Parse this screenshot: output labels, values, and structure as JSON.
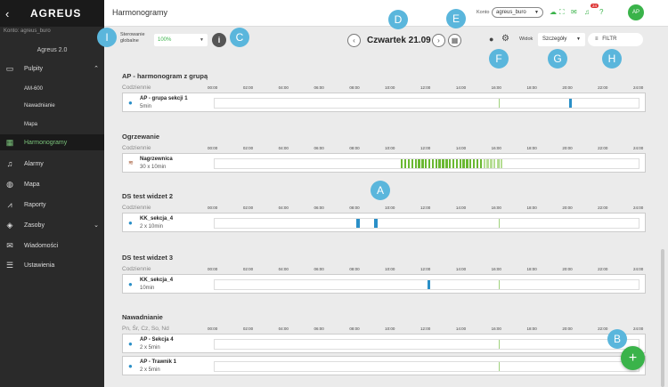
{
  "sidebar": {
    "logo": "AGREUS",
    "account": "Konto: agreus_buro",
    "version": "Agreus 2.0",
    "items": [
      {
        "label": "Pulpity",
        "icon": "monitor-icon"
      },
      {
        "label": "AM-600",
        "icon": ""
      },
      {
        "label": "Nawadnianie",
        "icon": ""
      },
      {
        "label": "Mapa",
        "icon": ""
      },
      {
        "label": "Harmonogramy",
        "icon": "calendar-icon"
      },
      {
        "label": "Alarmy",
        "icon": "bell-icon"
      },
      {
        "label": "Mapa",
        "icon": "globe-icon"
      },
      {
        "label": "Raporty",
        "icon": "chart-icon"
      },
      {
        "label": "Zasoby",
        "icon": "layers-icon"
      },
      {
        "label": "Wiadomości",
        "icon": "mail-icon"
      },
      {
        "label": "Ustawienia",
        "icon": "sliders-icon"
      }
    ]
  },
  "topbar": {
    "title": "Harmonogramy",
    "account_label": "Konto",
    "account_value": "agreus_buro",
    "notif_count": "24",
    "avatar": "AP"
  },
  "controls": {
    "steering_label_1": "Sterowanie",
    "steering_label_2": "globalne",
    "steering_value": "100%",
    "date": "Czwartek 21.09",
    "view_label": "Widok",
    "view_value": "Szczegóły",
    "filter_label": "FILTR"
  },
  "ticks": [
    "00:00",
    "02:00",
    "04:00",
    "06:00",
    "08:00",
    "10:00",
    "12:00",
    "14:00",
    "16:00",
    "18:00",
    "20:00",
    "22:00",
    "24:00"
  ],
  "now_fraction": 0.6667,
  "groups": [
    {
      "title": "AP - harmonogram z grupą",
      "sub": "Codziennie",
      "rows": [
        {
          "name": "AP - grupa sekcji 1",
          "dur": "5min",
          "icon": "water",
          "bars": [
            {
              "start_h": 20.0,
              "dur_h": 0.1,
              "color": "#2a8fc7"
            }
          ]
        }
      ]
    },
    {
      "title": "Ogrzewanie",
      "sub": "Codziennie",
      "rows": [
        {
          "name": "Nagrzewnica",
          "dur": "30 x 10min",
          "icon": "heat",
          "bars": []
        }
      ]
    },
    {
      "title": "DS test widzet 2",
      "sub": "Codziennie",
      "rows": [
        {
          "name": "KK_sekcja_4",
          "dur": "2 x 10min",
          "icon": "water",
          "bars": [
            {
              "start_h": 8.0,
              "dur_h": 0.17,
              "color": "#2a8fc7"
            },
            {
              "start_h": 9.0,
              "dur_h": 0.17,
              "color": "#2a8fc7"
            }
          ]
        }
      ]
    },
    {
      "title": "DS test widzet 3",
      "sub": "Codziennie",
      "rows": [
        {
          "name": "KK_sekcja_4",
          "dur": "10min",
          "icon": "water",
          "bars": [
            {
              "start_h": 12.0,
              "dur_h": 0.17,
              "color": "#2a8fc7"
            }
          ]
        }
      ]
    },
    {
      "title": "Nawadnianie",
      "sub": "Pn, Śr, Cz, So, Nd",
      "rows": [
        {
          "name": "AP - Sekcja 4",
          "dur": "2 x 5min",
          "icon": "water",
          "bars": []
        },
        {
          "name": "AP - Trawnik 1",
          "dur": "2 x 5min",
          "icon": "water",
          "bars": []
        }
      ]
    }
  ],
  "heating_series": {
    "start_h": 10.5,
    "end_h": 16.3,
    "count": 30,
    "color_on": "#6ab832",
    "color_light": "#b5dd92"
  },
  "callouts": [
    "A",
    "B",
    "C",
    "D",
    "E",
    "F",
    "G",
    "H",
    "I"
  ],
  "colors": {
    "accent": "#3ab34a",
    "callout": "#5ab6dc",
    "water": "#2a8fc7"
  }
}
